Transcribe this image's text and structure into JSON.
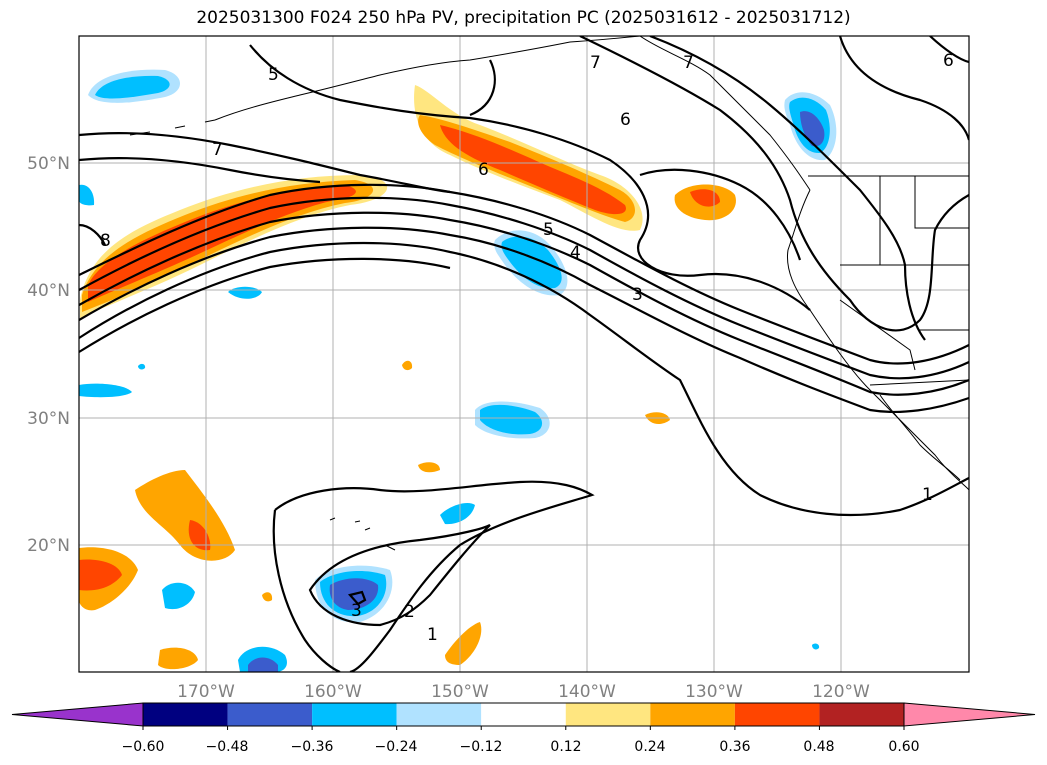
{
  "title": "2025031300 F024 250 hPa PV, precipitation PC (2025031612 - 2025031712)",
  "map": {
    "lon_range": [
      -180,
      -110
    ],
    "lat_range": [
      10,
      60
    ],
    "lat_tick_labels": [
      "50°N",
      "40°N",
      "30°N",
      "20°N"
    ],
    "lat_ticks": [
      50,
      40,
      30,
      20
    ],
    "lon_tick_labels": [
      "170°W",
      "160°W",
      "150°W",
      "140°W",
      "130°W",
      "120°W"
    ],
    "lon_ticks": [
      -170,
      -160,
      -150,
      -140,
      -130,
      -120
    ],
    "gridlines": true
  },
  "contour_labels": [
    "5",
    "7",
    "7",
    "6",
    "6",
    "6",
    "7",
    "8",
    "5",
    "4",
    "3",
    "1",
    "2",
    "1",
    "3"
  ],
  "colorbar": {
    "tick_labels": [
      "−0.60",
      "−0.48",
      "−0.36",
      "−0.24",
      "−0.12",
      "0.12",
      "0.24",
      "0.36",
      "0.48",
      "0.60"
    ],
    "colors": [
      "#9933cc",
      "#000080",
      "#3b5ccc",
      "#00bfff",
      "#b0e2ff",
      "#ffffff",
      "#ffe680",
      "#ffa500",
      "#ff4500",
      "#b22222",
      "#ff88aa"
    ],
    "extend": "both"
  }
}
